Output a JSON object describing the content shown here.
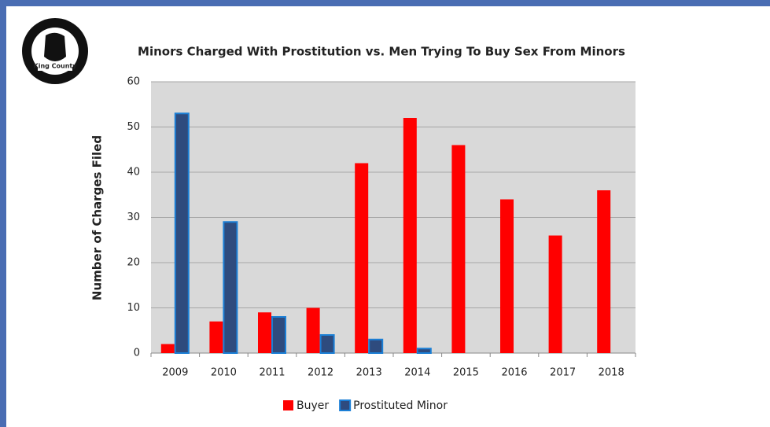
{
  "logo": {
    "label": "King County"
  },
  "chart_data": {
    "type": "bar",
    "title": "Minors Charged With Prostitution vs. Men Trying To Buy Sex From Minors",
    "y_label": "Number of Charges Filed",
    "categories": [
      "2009",
      "2010",
      "2011",
      "2012",
      "2013",
      "2014",
      "2015",
      "2016",
      "2017",
      "2018"
    ],
    "series": [
      {
        "name": "Buyer",
        "color": "#ff0000",
        "values": [
          2,
          7,
          9,
          10,
          42,
          52,
          46,
          34,
          26,
          36
        ]
      },
      {
        "name": "Prostituted Minor",
        "color": "#2e4b7e",
        "values": [
          53,
          29,
          8,
          4,
          3,
          1,
          null,
          null,
          null,
          null
        ]
      }
    ],
    "ylim": [
      0,
      60
    ],
    "yticks": [
      0,
      10,
      20,
      30,
      40,
      50,
      60
    ],
    "grid": true,
    "legend": "bottom"
  }
}
